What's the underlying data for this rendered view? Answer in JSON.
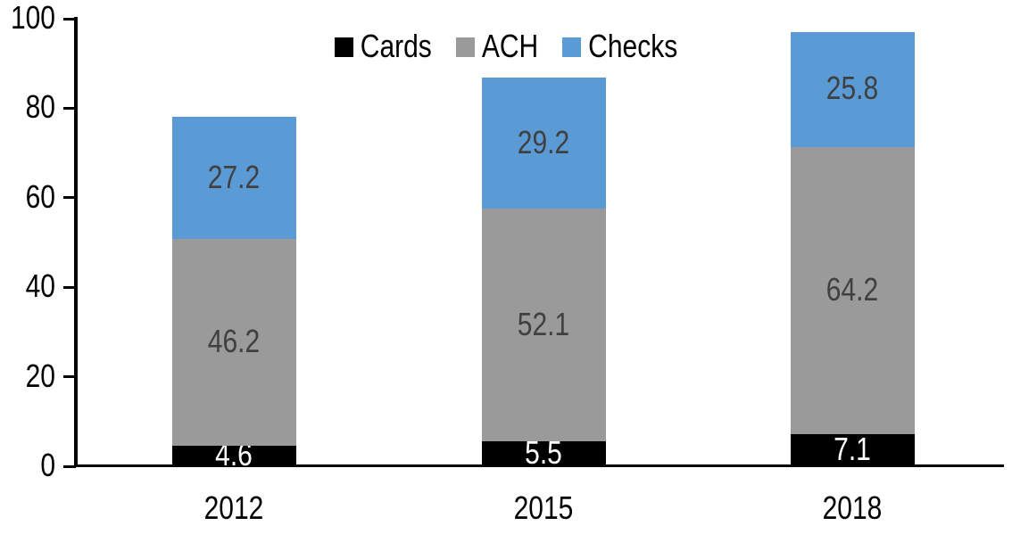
{
  "chart_data": {
    "type": "bar",
    "stacked": true,
    "title": "",
    "xlabel": "",
    "ylabel": "",
    "categories": [
      "2012",
      "2015",
      "2018"
    ],
    "series": [
      {
        "name": "Cards",
        "color": "#000000",
        "label_color": "#FFFFFF",
        "values": [
          4.6,
          5.5,
          7.1
        ]
      },
      {
        "name": "ACH",
        "color": "#9A9A9A",
        "label_color": "#404040",
        "values": [
          46.2,
          52.1,
          64.2
        ]
      },
      {
        "name": "Checks",
        "color": "#5B9BD5",
        "label_color": "#404040",
        "values": [
          27.2,
          29.2,
          25.8
        ]
      }
    ],
    "stack_totals": [
      78.0,
      86.8,
      97.1
    ],
    "ylim": [
      0,
      100
    ],
    "yticks": [
      0,
      20,
      40,
      60,
      80,
      100
    ],
    "grid": false,
    "legend_position": "top-center",
    "axis_color": "#000000",
    "background_color": "#FFFFFF"
  }
}
